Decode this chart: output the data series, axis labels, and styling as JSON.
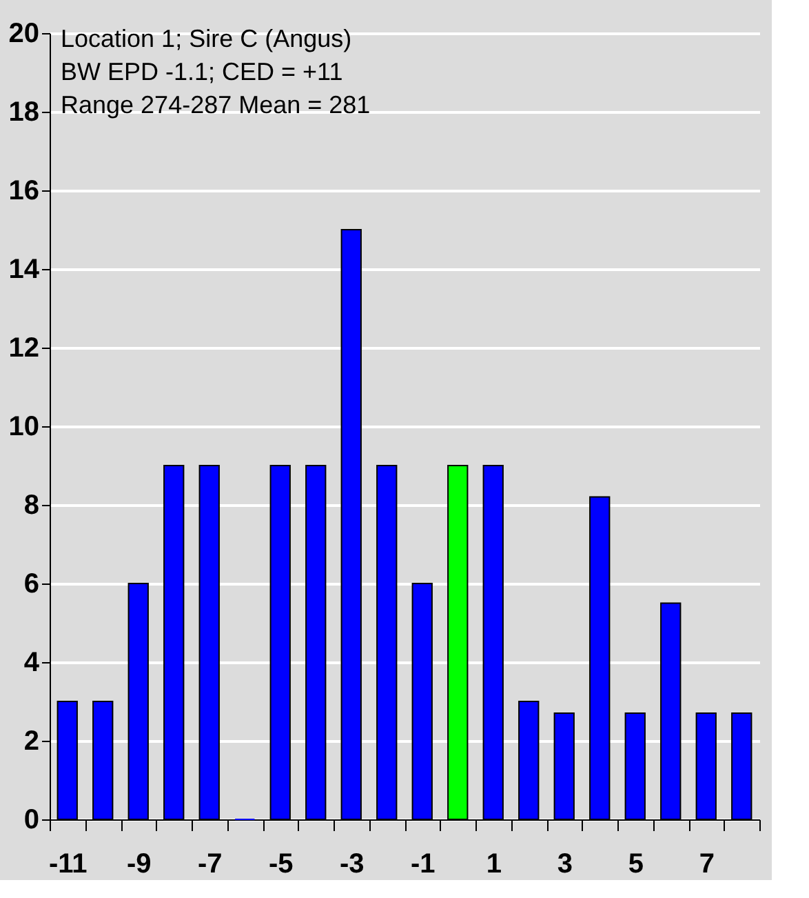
{
  "chart_data": {
    "type": "bar",
    "annotations": [
      "Location 1; Sire C (Angus)",
      "BW EPD -1.1;  CED = +11",
      "Range 274-287  Mean = 281"
    ],
    "categories": [
      "-11",
      null,
      "-9",
      null,
      "-7",
      null,
      "-5",
      null,
      "-3",
      null,
      "-1",
      null,
      "1",
      null,
      "3",
      null,
      "5",
      null,
      "7",
      null
    ],
    "values": [
      3,
      3,
      6,
      9,
      9,
      0,
      9,
      9,
      15,
      9,
      6,
      9,
      9,
      3,
      2.7,
      8.2,
      2.7,
      5.5,
      2.7,
      2.7
    ],
    "colors": [
      "#0000ff",
      "#0000ff",
      "#0000ff",
      "#0000ff",
      "#0000ff",
      "#0000ff",
      "#0000ff",
      "#0000ff",
      "#0000ff",
      "#0000ff",
      "#0000ff",
      "#00ff00",
      "#0000ff",
      "#0000ff",
      "#0000ff",
      "#0000ff",
      "#0000ff",
      "#0000ff",
      "#0000ff",
      "#0000ff"
    ],
    "ylim": [
      0,
      20
    ],
    "yticks": [
      0,
      2,
      4,
      6,
      8,
      10,
      12,
      14,
      16,
      18,
      20
    ],
    "grid": "y"
  }
}
